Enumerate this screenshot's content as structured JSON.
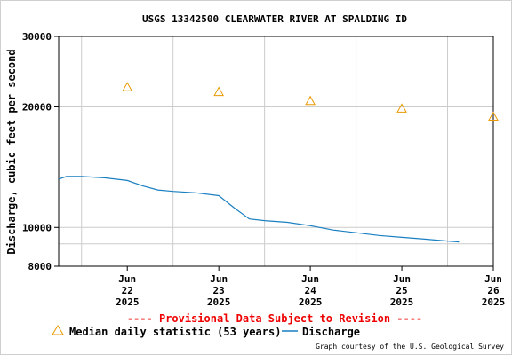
{
  "chart_data": {
    "type": "scatter",
    "title": "USGS 13342500 CLEARWATER RIVER AT SPALDING ID",
    "ylabel": "Discharge, cubic feet per second",
    "xlabel": "",
    "y_scale": "log",
    "ylim": [
      8000,
      30000
    ],
    "y_ticks": [
      8000,
      10000,
      20000,
      30000
    ],
    "y_tick_labels": [
      "8000",
      "10000",
      "20000",
      "30000"
    ],
    "xlim": [
      "2025-06-21T18:00",
      "2025-06-26T12:00"
    ],
    "x_ticks": [
      {
        "date": "2025-06-22T12:00",
        "label": [
          "Jun",
          "22",
          "2025"
        ]
      },
      {
        "date": "2025-06-23T12:00",
        "label": [
          "Jun",
          "23",
          "2025"
        ]
      },
      {
        "date": "2025-06-24T12:00",
        "label": [
          "Jun",
          "24",
          "2025"
        ]
      },
      {
        "date": "2025-06-25T12:00",
        "label": [
          "Jun",
          "25",
          "2025"
        ]
      },
      {
        "date": "2025-06-26T12:00",
        "label": [
          "Jun",
          "26",
          "2025"
        ]
      }
    ],
    "x_grid_dates": [
      "2025-06-22T00:00",
      "2025-06-23T00:00",
      "2025-06-24T00:00",
      "2025-06-25T00:00",
      "2025-06-26T00:00"
    ],
    "y_grid_values": [
      9100,
      10000,
      20000
    ],
    "grid": true,
    "series": [
      {
        "name": "Median daily statistic (53 years)",
        "marker": "triangle",
        "color": "#e89a00",
        "points": [
          {
            "x": "2025-06-22T12:00",
            "y": 22400
          },
          {
            "x": "2025-06-23T12:00",
            "y": 21800
          },
          {
            "x": "2025-06-24T12:00",
            "y": 20700
          },
          {
            "x": "2025-06-25T12:00",
            "y": 19800
          },
          {
            "x": "2025-06-26T12:00",
            "y": 18900
          }
        ]
      },
      {
        "name": "Discharge",
        "marker": "line",
        "color": "#1a7fc1",
        "points": [
          {
            "x": "2025-06-21T18:00",
            "y": 13200
          },
          {
            "x": "2025-06-21T20:00",
            "y": 13400
          },
          {
            "x": "2025-06-22T00:00",
            "y": 13400
          },
          {
            "x": "2025-06-22T06:00",
            "y": 13300
          },
          {
            "x": "2025-06-22T12:00",
            "y": 13100
          },
          {
            "x": "2025-06-22T16:00",
            "y": 12700
          },
          {
            "x": "2025-06-22T20:00",
            "y": 12400
          },
          {
            "x": "2025-06-23T00:00",
            "y": 12300
          },
          {
            "x": "2025-06-23T06:00",
            "y": 12200
          },
          {
            "x": "2025-06-23T12:00",
            "y": 12000
          },
          {
            "x": "2025-06-23T16:00",
            "y": 11200
          },
          {
            "x": "2025-06-23T20:00",
            "y": 10500
          },
          {
            "x": "2025-06-24T00:00",
            "y": 10400
          },
          {
            "x": "2025-06-24T06:00",
            "y": 10300
          },
          {
            "x": "2025-06-24T12:00",
            "y": 10100
          },
          {
            "x": "2025-06-24T18:00",
            "y": 9850
          },
          {
            "x": "2025-06-25T00:00",
            "y": 9700
          },
          {
            "x": "2025-06-25T06:00",
            "y": 9550
          },
          {
            "x": "2025-06-25T12:00",
            "y": 9450
          },
          {
            "x": "2025-06-25T18:00",
            "y": 9350
          },
          {
            "x": "2025-06-26T00:00",
            "y": 9250
          },
          {
            "x": "2025-06-26T03:00",
            "y": 9200
          }
        ]
      }
    ],
    "annotation": "---- Provisional Data Subject to Revision ----",
    "legend": [
      "Median daily statistic (53 years)",
      "Discharge"
    ],
    "legend_position": "bottom-left",
    "credit": "Graph courtesy of the U.S. Geological Survey"
  }
}
